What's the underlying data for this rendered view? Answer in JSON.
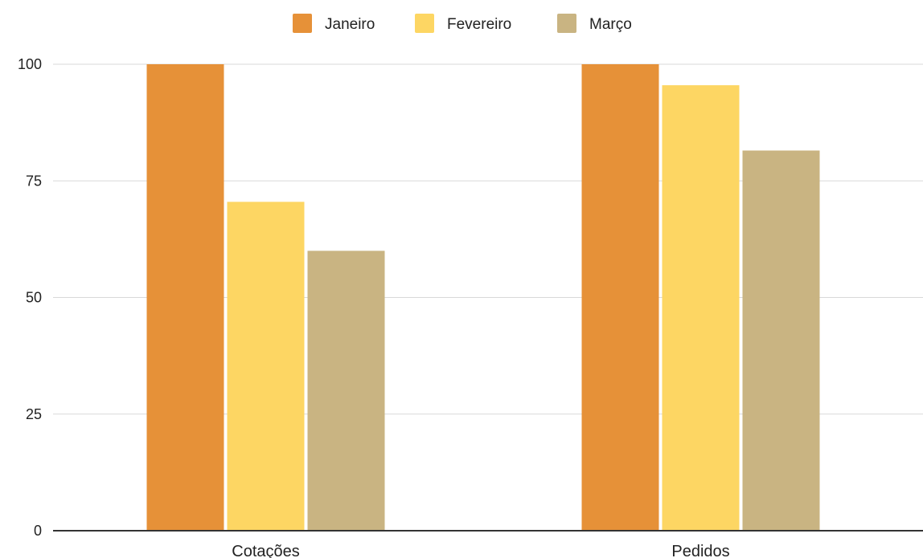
{
  "chart_data": {
    "type": "bar",
    "categories": [
      "Cotações",
      "Pedidos"
    ],
    "series": [
      {
        "name": "Janeiro",
        "values": [
          100,
          100
        ],
        "color": "#e69138"
      },
      {
        "name": "Fevereiro",
        "values": [
          70.5,
          95.5
        ],
        "color": "#fdd663"
      },
      {
        "name": "Março",
        "values": [
          60,
          81.5
        ],
        "color": "#c9b482"
      }
    ],
    "yticks": [
      "0",
      "25",
      "50",
      "75",
      "100"
    ],
    "ylim": [
      0,
      100
    ],
    "grid": true,
    "legend_position": "top-center"
  }
}
